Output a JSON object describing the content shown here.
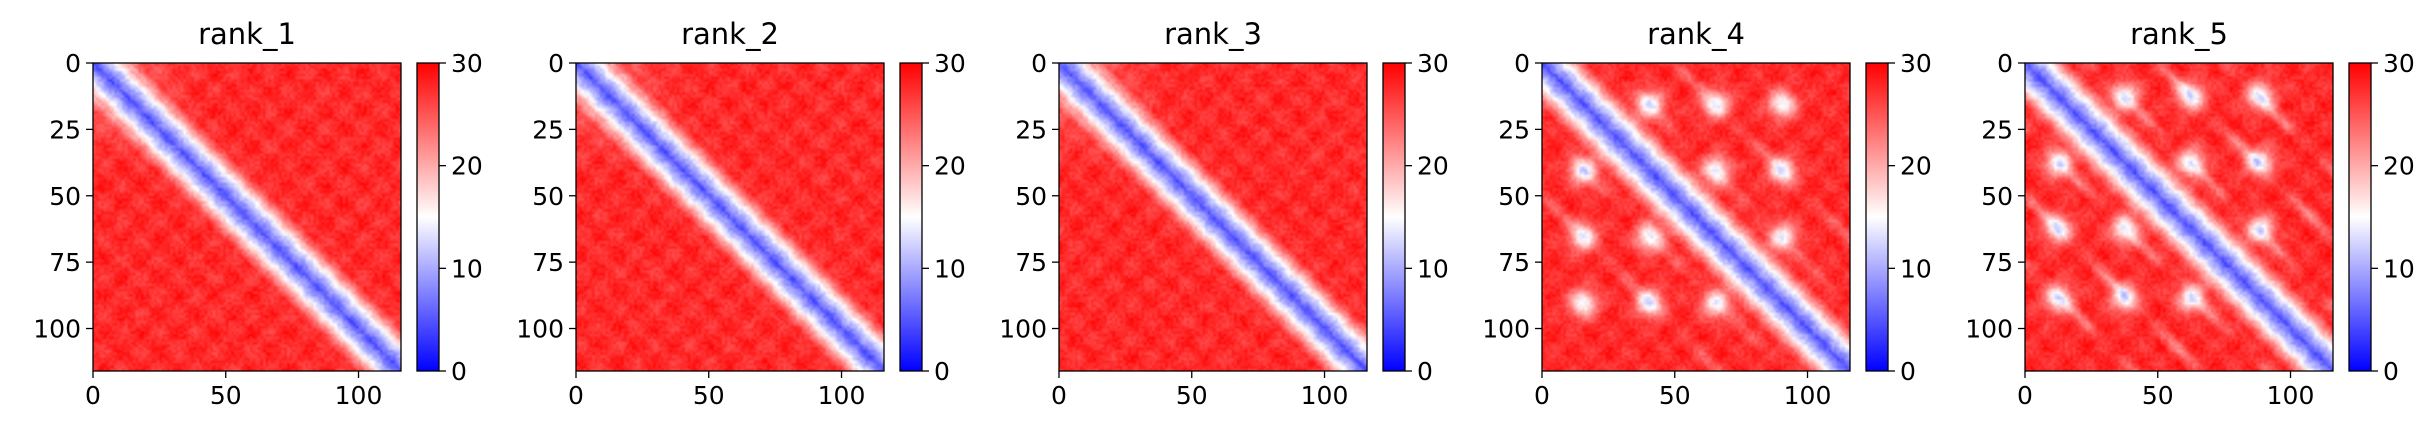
{
  "colormap": {
    "name": "bwr",
    "low": "#0000ff",
    "mid": "#ffffff",
    "high": "#ff0000"
  },
  "chart_data": [
    {
      "type": "heatmap",
      "title": "rank_1",
      "n": 116,
      "xticks": [
        0,
        50,
        100
      ],
      "yticks": [
        0,
        25,
        50,
        75,
        100
      ],
      "xlim": [
        0,
        116
      ],
      "ylim": [
        116,
        0
      ],
      "colorbar": {
        "range": [
          0,
          30
        ],
        "ticks": [
          0,
          10,
          20,
          30
        ]
      },
      "features": {
        "diagonal": "blue band along main diagonal (distance ~4-12)",
        "off_diagonal": "mostly red with a lighter region near the top-left",
        "contact_spots": []
      }
    },
    {
      "type": "heatmap",
      "title": "rank_2",
      "n": 116,
      "xticks": [
        0,
        50,
        100
      ],
      "yticks": [
        0,
        25,
        50,
        75,
        100
      ],
      "xlim": [
        0,
        116
      ],
      "ylim": [
        116,
        0
      ],
      "colorbar": {
        "range": [
          0,
          30
        ],
        "ticks": [
          0,
          10,
          20,
          30
        ]
      },
      "features": {
        "diagonal": "blue band along main diagonal",
        "off_diagonal": "mostly red",
        "contact_spots": []
      }
    },
    {
      "type": "heatmap",
      "title": "rank_3",
      "n": 116,
      "xticks": [
        0,
        50,
        100
      ],
      "yticks": [
        0,
        25,
        50,
        75,
        100
      ],
      "xlim": [
        0,
        116
      ],
      "ylim": [
        116,
        0
      ],
      "colorbar": {
        "range": [
          0,
          30
        ],
        "ticks": [
          0,
          10,
          20,
          30
        ]
      },
      "features": {
        "diagonal": "blue band along main diagonal",
        "off_diagonal": "mostly red",
        "contact_spots": []
      }
    },
    {
      "type": "heatmap",
      "title": "rank_4",
      "n": 116,
      "xticks": [
        0,
        50,
        100
      ],
      "yticks": [
        0,
        25,
        50,
        75,
        100
      ],
      "xlim": [
        0,
        116
      ],
      "ylim": [
        116,
        0
      ],
      "colorbar": {
        "range": [
          0,
          30
        ],
        "ticks": [
          0,
          10,
          20,
          30
        ]
      },
      "features": {
        "diagonal": "blue band along main diagonal",
        "off_diagonal": "red with scattered light contact spots",
        "contact_spots": [
          [
            40,
            15
          ],
          [
            15,
            40
          ],
          [
            65,
            40
          ],
          [
            40,
            65
          ],
          [
            90,
            65
          ],
          [
            65,
            90
          ],
          [
            90,
            40
          ],
          [
            40,
            90
          ],
          [
            15,
            90
          ],
          [
            90,
            15
          ],
          [
            65,
            15
          ],
          [
            15,
            65
          ]
        ]
      }
    },
    {
      "type": "heatmap",
      "title": "rank_5",
      "n": 116,
      "xticks": [
        0,
        50,
        100
      ],
      "yticks": [
        0,
        25,
        50,
        75,
        100
      ],
      "xlim": [
        0,
        116
      ],
      "ylim": [
        116,
        0
      ],
      "colorbar": {
        "range": [
          0,
          30
        ],
        "ticks": [
          0,
          10,
          20,
          30
        ]
      },
      "features": {
        "diagonal": "blue band along main diagonal",
        "off_diagonal": "red with regular light contact spots and parallel bands",
        "contact_spots": [
          [
            37,
            12
          ],
          [
            12,
            37
          ],
          [
            62,
            37
          ],
          [
            37,
            62
          ],
          [
            88,
            62
          ],
          [
            62,
            88
          ],
          [
            62,
            12
          ],
          [
            12,
            62
          ],
          [
            88,
            37
          ],
          [
            37,
            88
          ],
          [
            88,
            12
          ],
          [
            12,
            88
          ]
        ]
      }
    }
  ]
}
